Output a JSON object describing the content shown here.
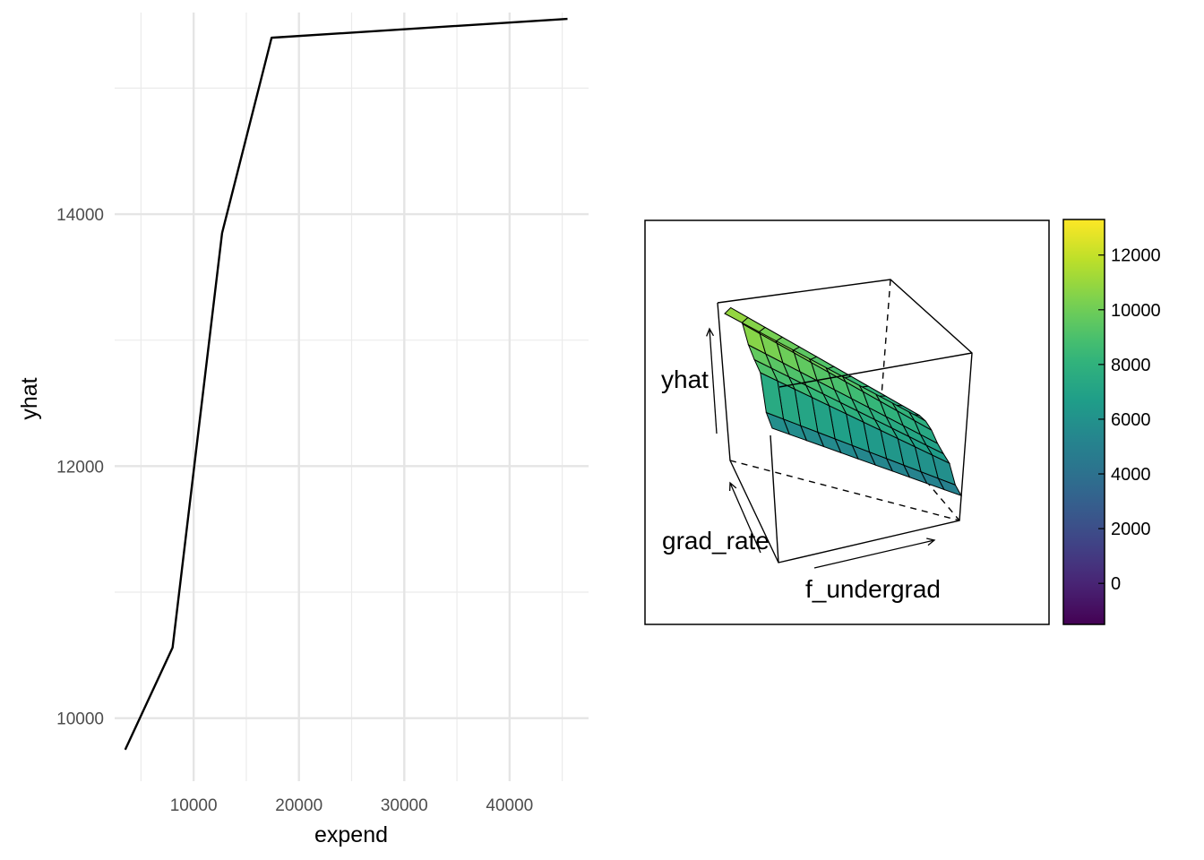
{
  "chart_data": [
    {
      "type": "line",
      "xlabel": "expend",
      "ylabel": "yhat",
      "xlim": [
        2500,
        47500
      ],
      "ylim": [
        9500,
        15600
      ],
      "x_ticks": [
        10000,
        20000,
        30000,
        40000
      ],
      "y_ticks": [
        10000,
        12000,
        14000
      ],
      "grid": true,
      "series": [
        {
          "x": [
            3500,
            8000,
            12700,
            17400,
            45500
          ],
          "y": [
            9750,
            10560,
            13850,
            15400,
            15550
          ],
          "color": "#000000"
        }
      ]
    },
    {
      "type": "surface",
      "axis_labels": {
        "z": "yhat",
        "y": "grad_rate",
        "x": "f_undergrad"
      },
      "colorbar": {
        "palette": "viridis",
        "range": [
          -1500,
          13300
        ],
        "ticks": [
          "0",
          "2000",
          "4000",
          "6000",
          "8000",
          "10000",
          "12000"
        ]
      },
      "grid_size": [
        12,
        9
      ],
      "z_min": 4300,
      "z_max": 11800,
      "ridge_profile": {
        "grad_rate_step": [
          0,
          1,
          2,
          3,
          4,
          5,
          6,
          7,
          8
        ],
        "relative_height": [
          0.83,
          0.97,
          1.0,
          0.94,
          0.78,
          0.69,
          0.62,
          0.25,
          0.15
        ]
      },
      "f_undergrad_trend": "decreasing"
    }
  ]
}
